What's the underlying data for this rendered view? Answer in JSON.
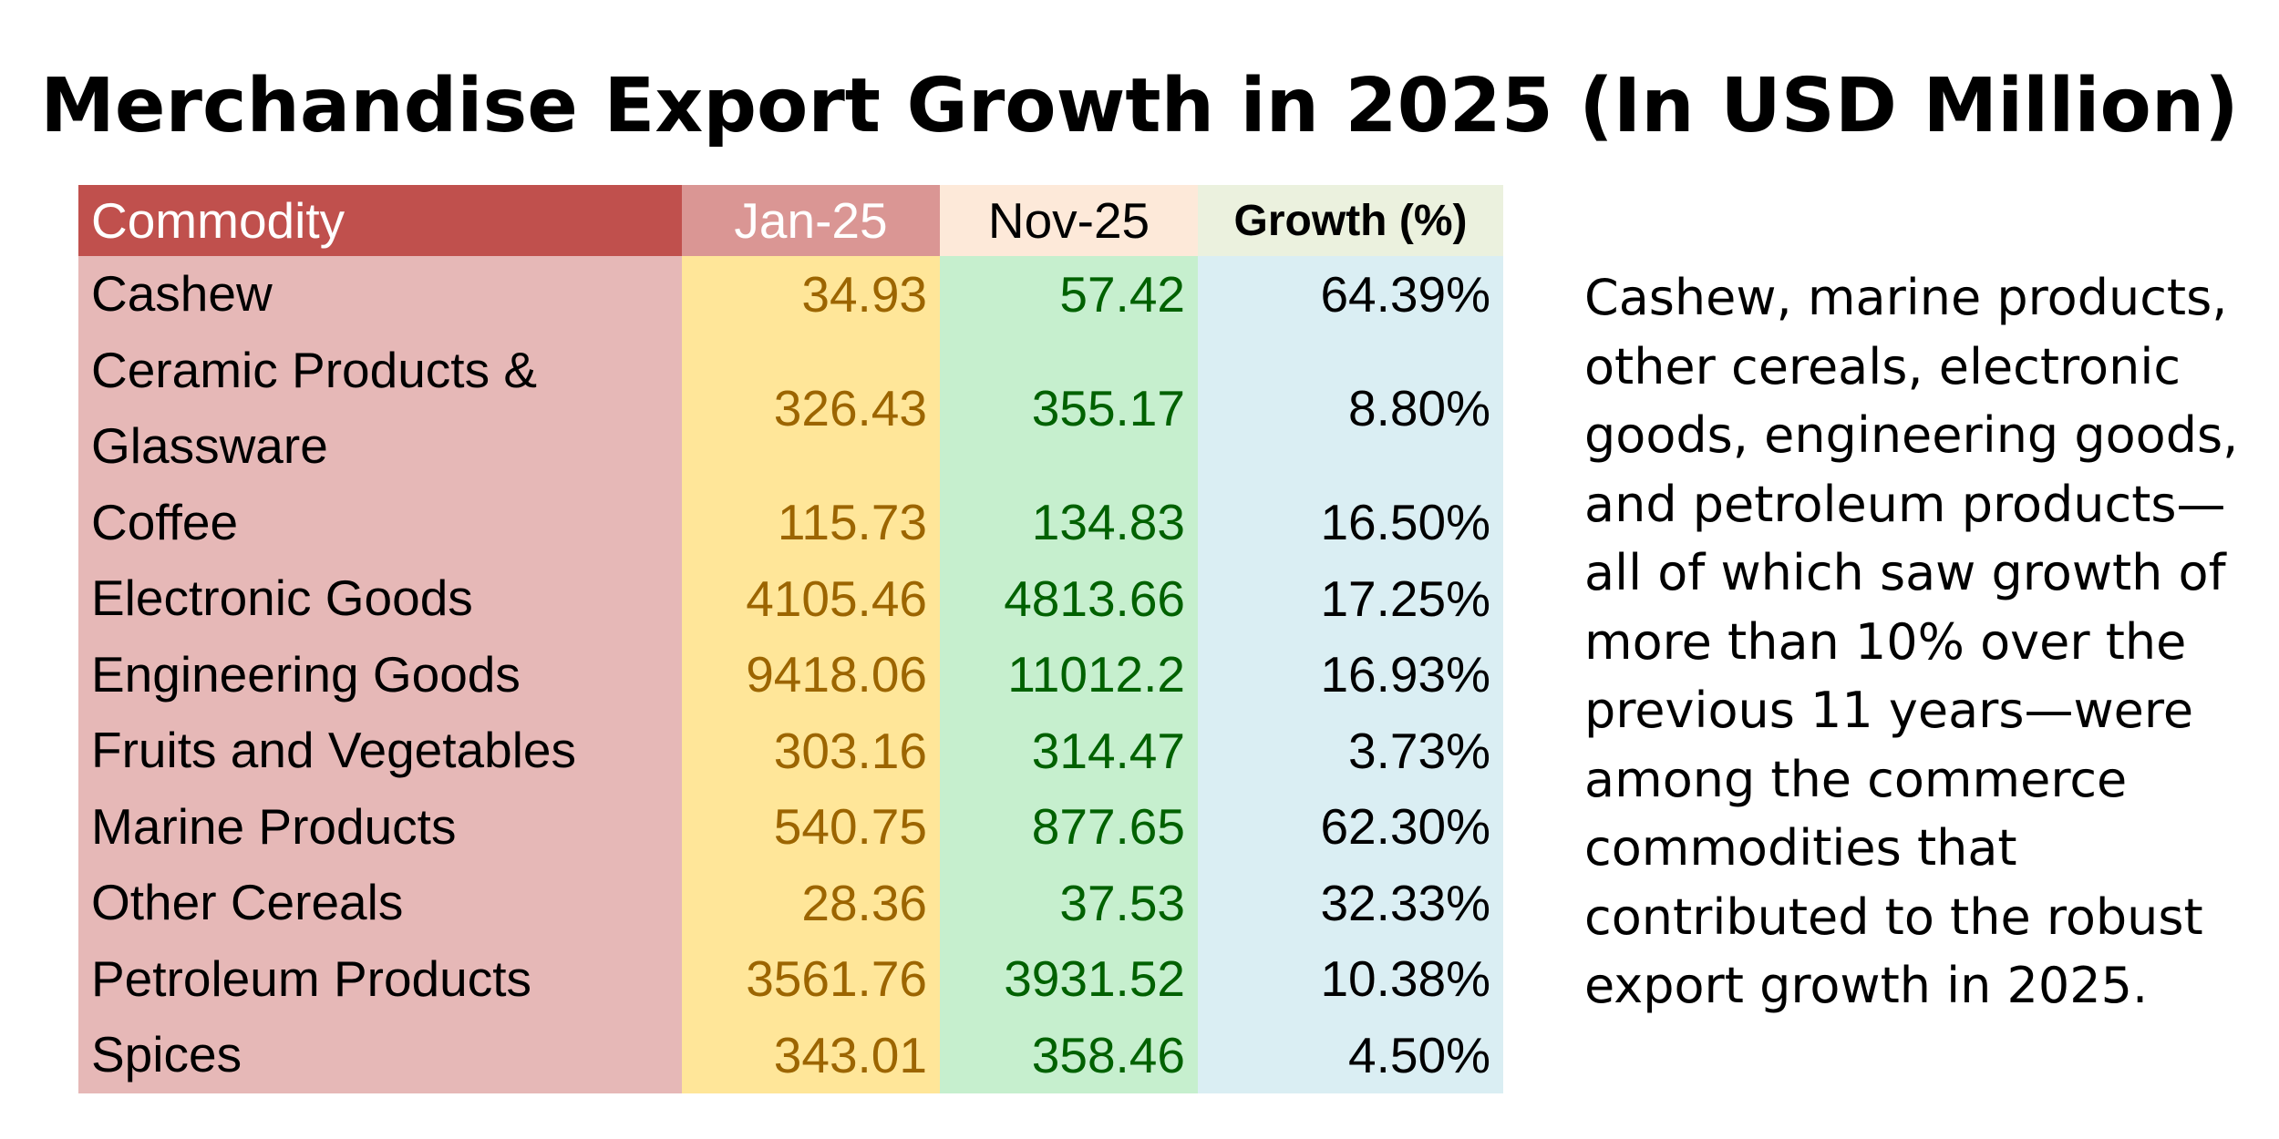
{
  "title": "Merchandise Export Growth in 2025 (In USD Million)",
  "chart_data": {
    "type": "table",
    "title": "Merchandise Export Growth in 2025 (In USD Million)",
    "columns": [
      "Commodity",
      "Jan-25",
      "Nov-25",
      "Growth (%)"
    ],
    "rows": [
      {
        "commodity": "Cashew",
        "jan": "34.93",
        "nov": "57.42",
        "growth": "64.39%"
      },
      {
        "commodity": "Ceramic Products & Glassware",
        "jan": "326.43",
        "nov": "355.17",
        "growth": "8.80%"
      },
      {
        "commodity": "Coffee",
        "jan": "115.73",
        "nov": "134.83",
        "growth": "16.50%"
      },
      {
        "commodity": "Electronic Goods",
        "jan": "4105.46",
        "nov": "4813.66",
        "growth": "17.25%"
      },
      {
        "commodity": "Engineering Goods",
        "jan": "9418.06",
        "nov": "11012.2",
        "growth": "16.93%"
      },
      {
        "commodity": "Fruits and Vegetables",
        "jan": "303.16",
        "nov": "314.47",
        "growth": "3.73%"
      },
      {
        "commodity": "Marine Products",
        "jan": "540.75",
        "nov": "877.65",
        "growth": "62.30%"
      },
      {
        "commodity": "Other Cereals",
        "jan": "28.36",
        "nov": "37.53",
        "growth": "32.33%"
      },
      {
        "commodity": "Petroleum Products",
        "jan": "3561.76",
        "nov": "3931.52",
        "growth": "10.38%"
      },
      {
        "commodity": "Spices",
        "jan": "343.01",
        "nov": "358.46",
        "growth": "4.50%"
      }
    ]
  },
  "note": "Cashew, marine products, other cereals, electronic goods, engineering goods, and petroleum products—all of which saw growth of more than 10% over the previous 11 years—were among the commerce commodities that contributed to the robust export growth in 2025.",
  "colors": {
    "header_commodity": "#c0504d",
    "header_jan": "#da9694",
    "header_nov": "#fde9d9",
    "header_growth": "#ebf1de",
    "col_commodity": "#e6b8b7",
    "col_jan": "#ffe699",
    "col_nov": "#c6efce",
    "col_growth": "#daeef3",
    "text_jan": "#9c6500",
    "text_nov": "#006100"
  }
}
